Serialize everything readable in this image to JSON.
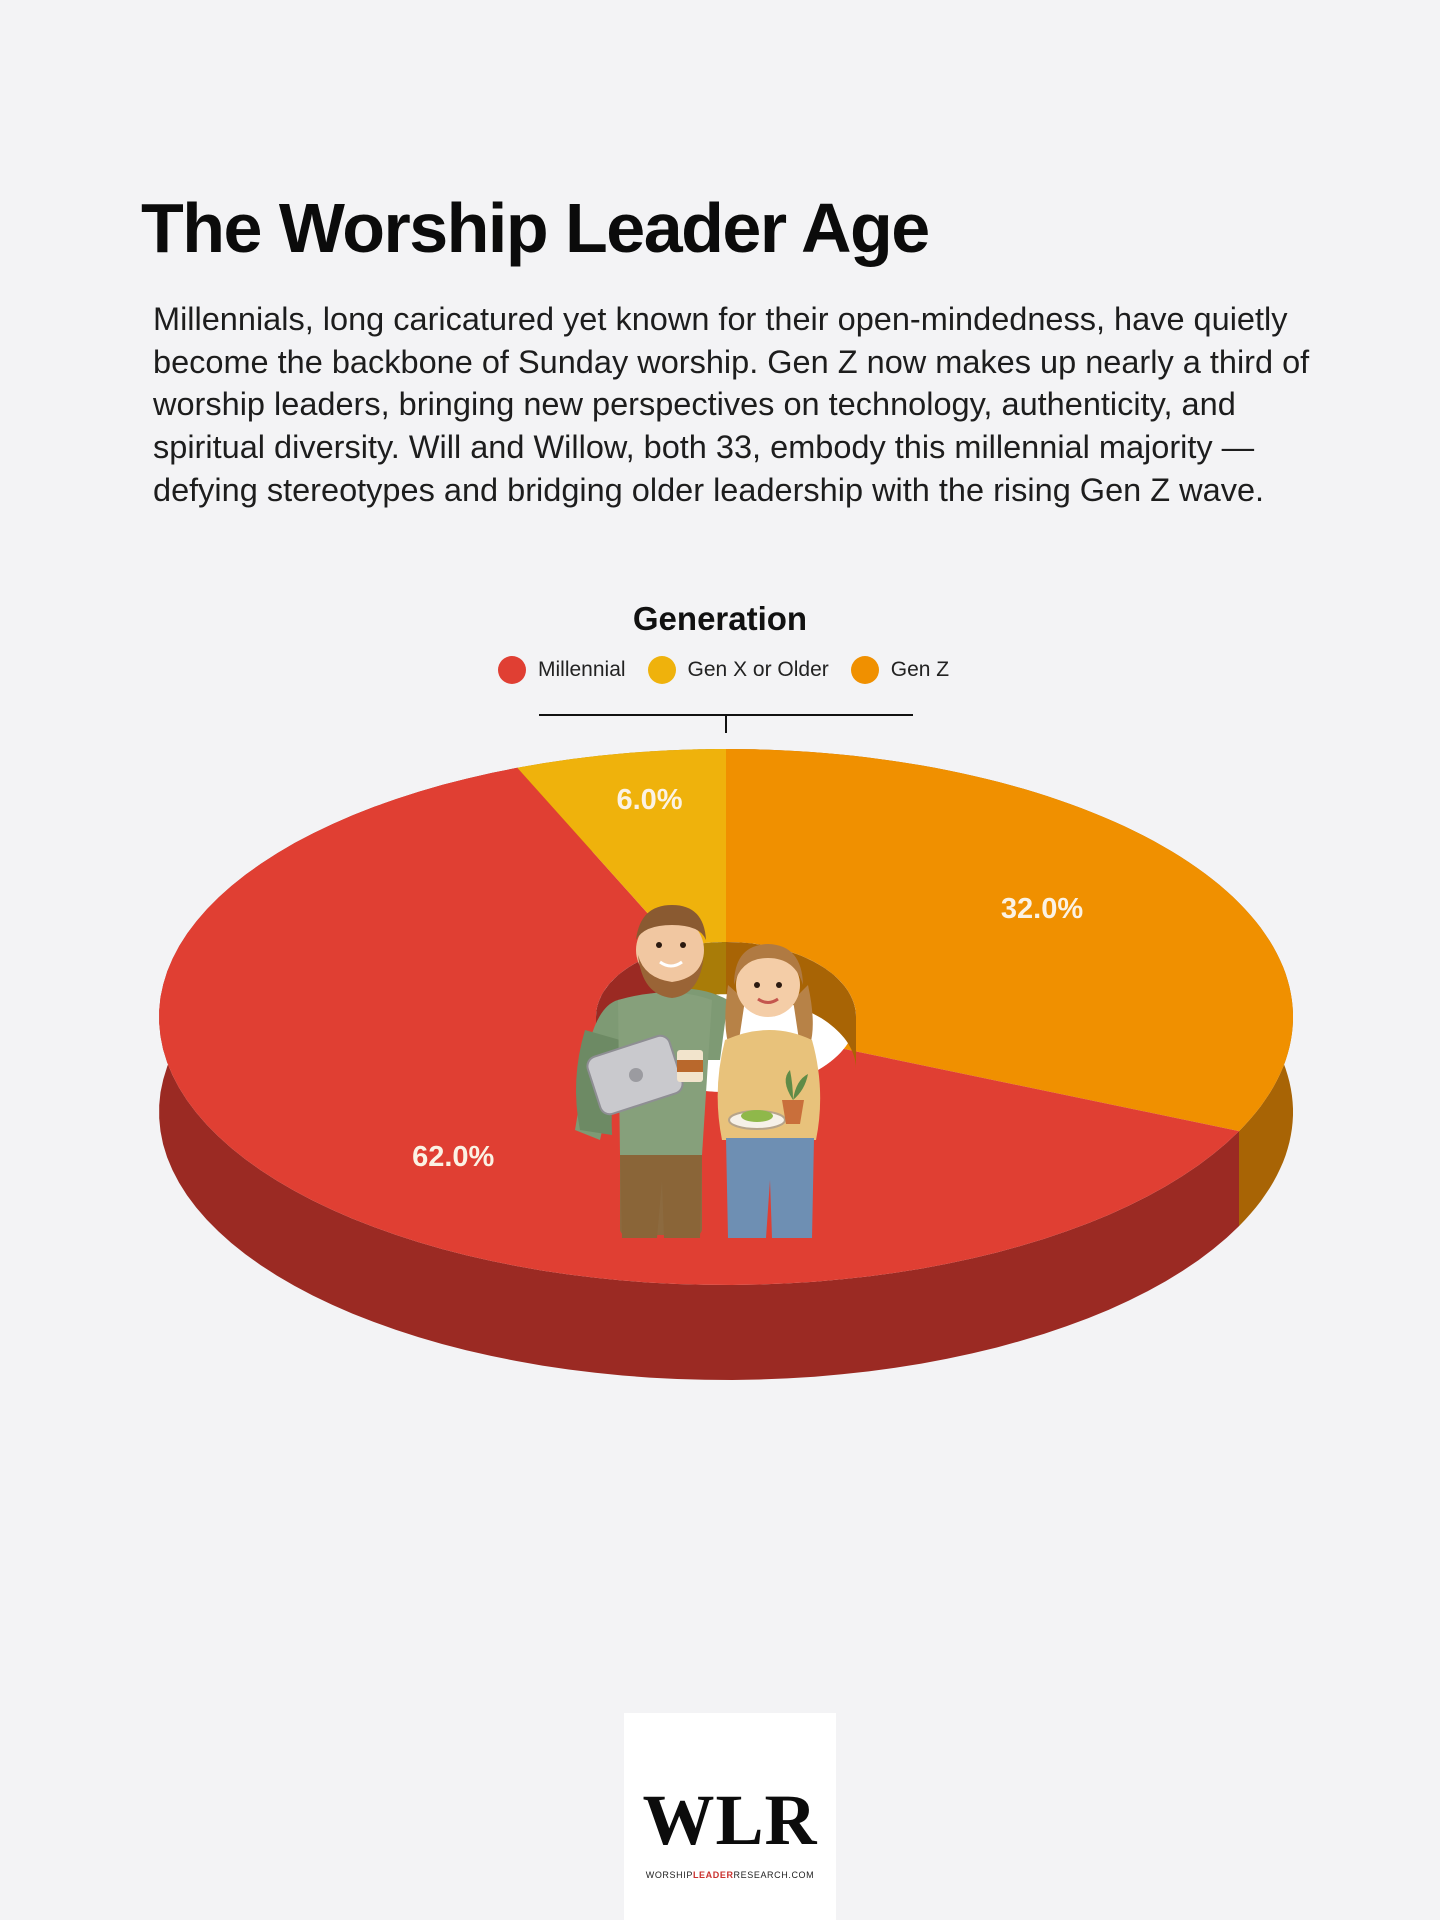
{
  "header": {
    "title": "The Worship Leader Age",
    "description": "Millennials, long caricatured yet known for their open-mindedness, have quietly become the backbone of Sunday worship. Gen Z now makes up nearly a third of worship leaders, bringing new perspectives on technology, authenticity, and spiritual diversity. Will and Willow, both 33, embody this millennial majority — defying stereotypes and bridging older leadership with the rising Gen Z wave."
  },
  "chart_data": {
    "type": "pie",
    "variant": "3d donut",
    "title": "Generation",
    "legend_position": "top-center",
    "slices": [
      {
        "name": "Millennial",
        "value": 62.0,
        "label": "62.0%",
        "color": "#e03f33",
        "side_color": "#9b2a23"
      },
      {
        "name": "Gen X or Older",
        "value": 6.0,
        "label": "6.0%",
        "color": "#efb20c",
        "side_color": "#a97c08"
      },
      {
        "name": "Gen Z",
        "value": 32.0,
        "label": "32.0%",
        "color": "#f09000",
        "side_color": "#a86405"
      }
    ]
  },
  "illustration": {
    "description_icon": "couple-illustration"
  },
  "logo": {
    "mark": "WLR",
    "tagline_pre": "WORSHIP",
    "tagline_accent": "LEADER",
    "tagline_post": "RESEARCH.COM"
  }
}
